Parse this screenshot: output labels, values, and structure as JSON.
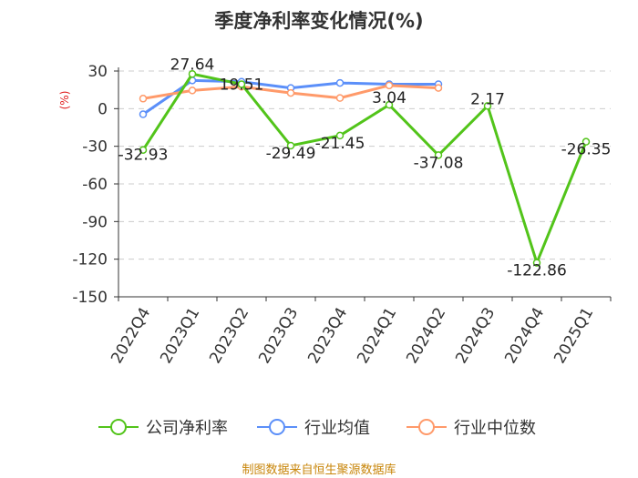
{
  "chart_data": {
    "type": "line",
    "title": "季度净利率变化情况(%)",
    "ylabel": "(%)",
    "categories": [
      "2022Q4",
      "2023Q1",
      "2023Q2",
      "2023Q3",
      "2023Q4",
      "2024Q1",
      "2024Q2",
      "2024Q3",
      "2024Q4",
      "2025Q1"
    ],
    "ylim": [
      -150,
      30
    ],
    "yticks": [
      30,
      0,
      -30,
      -60,
      -90,
      -120,
      -150
    ],
    "grid": true,
    "legend_position": "bottom",
    "series": [
      {
        "name": "公司净利率",
        "color": "#52c41a",
        "values": [
          -32.93,
          27.64,
          19.51,
          -29.49,
          -21.45,
          3.04,
          -37.08,
          2.17,
          -122.86,
          -26.35
        ],
        "labels": [
          "-32.93",
          "27.64",
          "19.51",
          "-29.49",
          "-21.45",
          "3.04",
          "-37.08",
          "2.17",
          "-122.86",
          "-26.35"
        ]
      },
      {
        "name": "行业均值",
        "color": "#5b8ff9",
        "values": [
          -4.5,
          22.5,
          21.5,
          16.5,
          20.5,
          19.5,
          19.5,
          null,
          null,
          null
        ]
      },
      {
        "name": "行业中位数",
        "color": "#ff9a6a",
        "values": [
          8,
          14.5,
          17.5,
          12.5,
          8.5,
          18.5,
          16.5,
          null,
          null,
          null
        ]
      }
    ],
    "source": "制图数据来自恒生聚源数据库"
  }
}
